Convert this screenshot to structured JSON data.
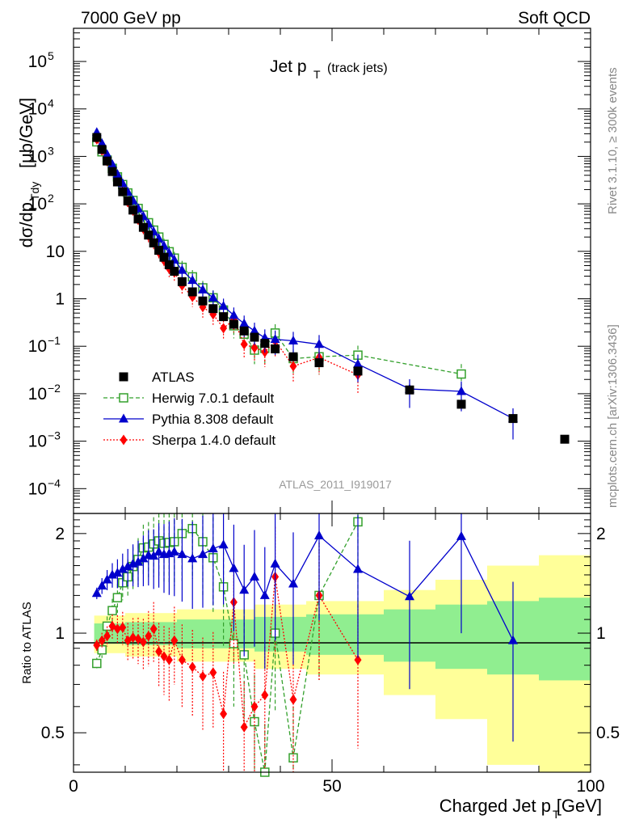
{
  "header": {
    "left": "7000 GeV pp",
    "right": "Soft QCD"
  },
  "side_labels": {
    "top": "Rivet 3.1.10, ≥ 300k events",
    "bottom": "mcplots.cern.ch [arXiv:1306.3436]"
  },
  "chart_data": {
    "type": "scatter",
    "title": "Jet p",
    "title_sub": "T",
    "title_suffix": "(track jets)",
    "analysis_label": "ATLAS_2011_I919017",
    "ylabel_main": "dσ/dp",
    "ylabel_sub": "Tdy",
    "ylabel_units": "[μb/GeV]",
    "ylabel_ratio": "Ratio to ATLAS",
    "xlabel": "Charged Jet p",
    "xlabel_sub": "T",
    "xlabel_units": "[GeV]",
    "xlim": [
      0,
      100
    ],
    "ylim_log": [
      3e-05,
      500000.0
    ],
    "ratio_ylim": [
      0.38,
      2.3
    ],
    "x_ticks": [
      "0",
      "50",
      "100"
    ],
    "y_ticks": [
      {
        "base": "10",
        "exp": "5"
      },
      {
        "base": "10",
        "exp": "4"
      },
      {
        "base": "10",
        "exp": "3"
      },
      {
        "base": "10",
        "exp": "2"
      },
      {
        "base": "10",
        "exp": ""
      },
      {
        "base": "1",
        "exp": ""
      },
      {
        "base": "10",
        "exp": "−1"
      },
      {
        "base": "10",
        "exp": "−2"
      },
      {
        "base": "10",
        "exp": "−3"
      },
      {
        "base": "10",
        "exp": "−4"
      }
    ],
    "ratio_ticks": [
      "2",
      "1",
      "0.5"
    ],
    "x": [
      4.5,
      5.5,
      6.5,
      7.5,
      8.5,
      9.5,
      10.5,
      11.5,
      12.5,
      13.5,
      14.5,
      15.5,
      16.5,
      17.5,
      18.5,
      19.5,
      21,
      23,
      25,
      27,
      29,
      31,
      33,
      35,
      37,
      39,
      42.5,
      47.5,
      55,
      65,
      75,
      85,
      95
    ],
    "series": [
      {
        "name": "ATLAS",
        "color": "#000000",
        "values": [
          2500,
          1400,
          800,
          480,
          290,
          180,
          115,
          74,
          48,
          32,
          22,
          15,
          10.5,
          7.5,
          5.2,
          3.8,
          2.3,
          1.4,
          0.9,
          0.62,
          0.42,
          0.29,
          0.21,
          0.155,
          0.115,
          0.088,
          0.06,
          0.045,
          0.03,
          0.012,
          0.006,
          0.003,
          0.0011
        ]
      },
      {
        "name": "Herwig 7.0.1 default",
        "color": "#33a02c",
        "values": [
          2025,
          1250,
          840,
          560,
          370,
          255,
          170,
          118,
          80,
          58,
          40,
          28,
          20,
          14,
          9.8,
          7.2,
          4.6,
          2.9,
          1.7,
          1.05,
          0.58,
          0.27,
          0.18,
          0.083,
          0.09,
          0.19,
          0.055,
          0.06,
          0.065,
          null,
          0.026,
          null,
          null
        ],
        "ratio": [
          0.81,
          0.89,
          1.05,
          1.17,
          1.28,
          1.42,
          1.48,
          1.59,
          1.67,
          1.81,
          1.82,
          1.86,
          1.9,
          1.87,
          1.88,
          1.89,
          2.0,
          2.07,
          1.89,
          1.69,
          1.38,
          0.93,
          0.86,
          0.54,
          0.38,
          1.0,
          0.42,
          1.3,
          2.17,
          null,
          null,
          null,
          null
        ]
      },
      {
        "name": "Pythia 8.308 default",
        "color": "#0000cc",
        "values": [
          3200,
          1880,
          1100,
          680,
          420,
          270,
          178,
          118,
          80,
          55,
          38,
          26,
          18.5,
          13,
          9.2,
          6.6,
          4.0,
          2.46,
          1.55,
          1.05,
          0.7,
          0.45,
          0.3,
          0.21,
          0.15,
          0.14,
          0.13,
          0.11,
          0.042,
          0.0126,
          0.0112,
          0.003,
          null
        ],
        "ratio": [
          1.32,
          1.39,
          1.45,
          1.5,
          1.52,
          1.56,
          1.59,
          1.62,
          1.64,
          1.68,
          1.72,
          1.71,
          1.76,
          1.73,
          1.74,
          1.76,
          1.73,
          1.68,
          1.73,
          1.8,
          1.85,
          1.57,
          1.35,
          1.48,
          1.3,
          1.62,
          1.41,
          1.97,
          1.56,
          1.29,
          1.96,
          0.95,
          null
        ]
      },
      {
        "name": "Sherpa 1.4.0 default",
        "color": "#ff0000",
        "values": [
          2300,
          1330,
          790,
          490,
          300,
          185,
          108,
          72,
          46,
          30,
          21,
          15,
          9.5,
          6.4,
          4.3,
          3.6,
          1.9,
          1.1,
          0.67,
          0.47,
          0.24,
          0.36,
          0.11,
          0.093,
          0.075,
          0.13,
          0.038,
          0.058,
          0.025,
          null,
          null,
          null,
          null
        ],
        "ratio": [
          0.92,
          0.95,
          0.98,
          1.05,
          1.03,
          1.04,
          0.95,
          0.97,
          0.96,
          0.94,
          0.98,
          1.03,
          0.88,
          0.85,
          0.83,
          0.95,
          0.83,
          0.79,
          0.74,
          0.76,
          0.57,
          1.24,
          0.52,
          0.6,
          0.65,
          1.48,
          0.63,
          1.3,
          0.83,
          null,
          null,
          null,
          null
        ]
      }
    ],
    "uncertainty_bands": {
      "x_edges": [
        4,
        10,
        20,
        35,
        45,
        60,
        70,
        80,
        90,
        100
      ],
      "green": [
        0.07,
        0.08,
        0.1,
        0.12,
        0.14,
        0.18,
        0.22,
        0.25,
        0.28
      ],
      "yellow": [
        0.13,
        0.15,
        0.18,
        0.22,
        0.25,
        0.35,
        0.45,
        0.6,
        0.72
      ],
      "green_color": "#90ee90",
      "yellow_color": "#ffff99"
    },
    "legend": [
      "ATLAS",
      "Herwig 7.0.1 default",
      "Pythia 8.308 default",
      "Sherpa 1.4.0 default"
    ]
  }
}
